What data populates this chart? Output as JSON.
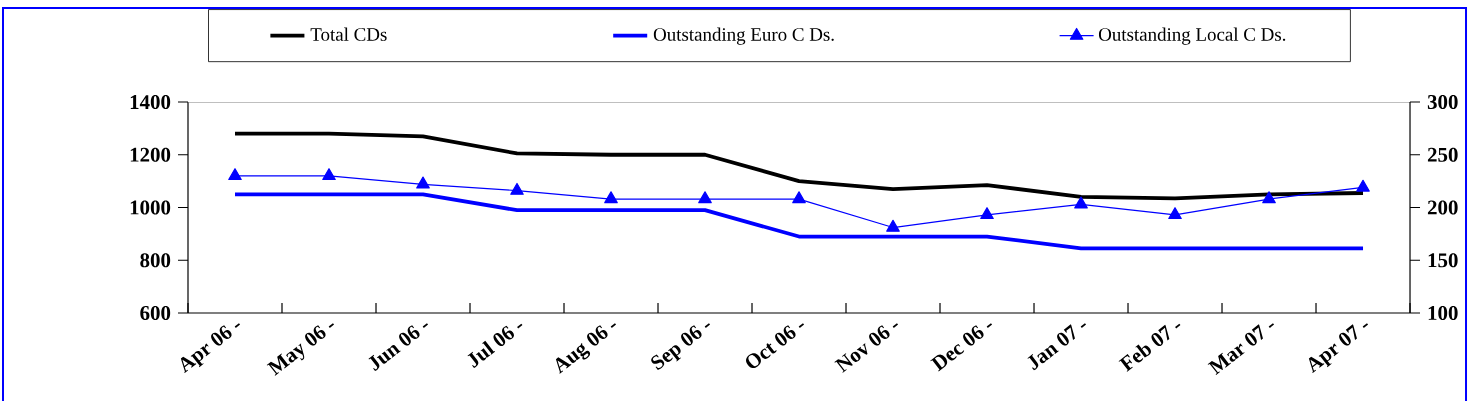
{
  "chart_data": {
    "type": "line",
    "categories": [
      "Apr 06 -",
      "May 06 -",
      "Jun 06 -",
      "Jul 06 -",
      "Aug 06 -",
      "Sep 06 -",
      "Oct 06 -",
      "Nov 06 -",
      "Dec 06 -",
      "Jan 07 -",
      "Feb 07 -",
      "Mar 07 -",
      "Apr 07 -"
    ],
    "series": [
      {
        "name": "Total  CDs",
        "color": "#000000",
        "marker": "none",
        "values": [
          1280,
          1280,
          1270,
          1205,
          1200,
          1200,
          1100,
          1070,
          1085,
          1040,
          1035,
          1050,
          1055
        ]
      },
      {
        "name": "Outstanding Euro C Ds.",
        "color": "#0000ff",
        "marker": "none",
        "values": [
          1050,
          1050,
          1050,
          990,
          990,
          990,
          890,
          890,
          890,
          845,
          845,
          845,
          845
        ]
      },
      {
        "name": "Outstanding Local C Ds.",
        "color": "#0000ff",
        "marker": "triangle",
        "axis": "y2",
        "values": [
          230,
          230,
          222,
          216,
          208,
          208,
          208,
          181,
          193,
          203,
          193,
          208,
          219
        ]
      }
    ],
    "ylim": [
      600,
      1400
    ],
    "yticks": [
      600,
      800,
      1000,
      1200,
      1400
    ],
    "y2lim": [
      100,
      300
    ],
    "y2ticks": [
      100,
      150,
      200,
      250,
      300
    ],
    "legend": "top"
  }
}
